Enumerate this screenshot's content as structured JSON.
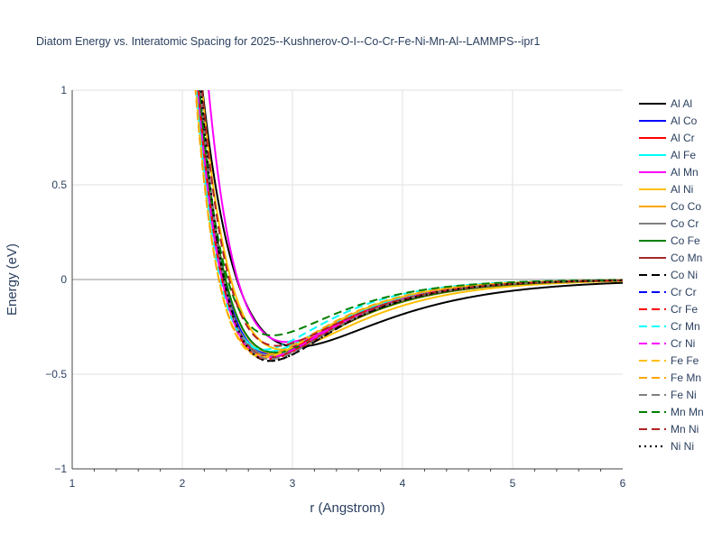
{
  "chart_data": {
    "type": "line",
    "title": "Diatom Energy vs. Interatomic Spacing for 2025--Kushnerov-O-I--Co-Cr-Fe-Ni-Mn-Al--LAMMPS--ipr1",
    "xlabel": "r (Angstrom)",
    "ylabel": "Energy (eV)",
    "xlim": [
      1,
      6
    ],
    "ylim": [
      -1,
      1
    ],
    "x_ticks": [
      "1",
      "2",
      "3",
      "4",
      "5",
      "6"
    ],
    "y_ticks": [
      "1",
      "0.5",
      "0",
      "−0.5",
      "−1"
    ],
    "grid": true,
    "legend_position": "right",
    "series": [
      {
        "name": "Al Al",
        "color": "#000000",
        "dash": "solid",
        "width": 2,
        "r0": 3.05,
        "d": 0.355,
        "a": 1.25
      },
      {
        "name": "Al Co",
        "color": "#0000ff",
        "dash": "solid",
        "width": 2,
        "r0": 2.8,
        "d": 0.39,
        "a": 1.65
      },
      {
        "name": "Al Cr",
        "color": "#ff0000",
        "dash": "solid",
        "width": 2,
        "r0": 2.78,
        "d": 0.4,
        "a": 1.65
      },
      {
        "name": "Al Fe",
        "color": "#00ffff",
        "dash": "solid",
        "width": 2,
        "r0": 2.78,
        "d": 0.38,
        "a": 1.65
      },
      {
        "name": "Al Mn",
        "color": "#ff00ff",
        "dash": "solid",
        "width": 2,
        "r0": 2.95,
        "d": 0.33,
        "a": 1.55
      },
      {
        "name": "Al Ni",
        "color": "#ffbf00",
        "dash": "solid",
        "width": 2,
        "r0": 2.92,
        "d": 0.37,
        "a": 1.45
      },
      {
        "name": "Co Co",
        "color": "#ffa500",
        "dash": "solid",
        "width": 2,
        "r0": 2.84,
        "d": 0.39,
        "a": 1.55
      },
      {
        "name": "Co Cr",
        "color": "#808080",
        "dash": "solid",
        "width": 2,
        "r0": 2.8,
        "d": 0.4,
        "a": 1.6
      },
      {
        "name": "Co Fe",
        "color": "#008000",
        "dash": "solid",
        "width": 2,
        "r0": 2.84,
        "d": 0.385,
        "a": 1.55
      },
      {
        "name": "Co Mn",
        "color": "#a52a2a",
        "dash": "solid",
        "width": 2,
        "r0": 2.8,
        "d": 0.41,
        "a": 1.6
      },
      {
        "name": "Co Ni",
        "color": "#000000",
        "dash": "dash",
        "width": 2,
        "r0": 2.8,
        "d": 0.43,
        "a": 1.65
      },
      {
        "name": "Cr Cr",
        "color": "#0000ff",
        "dash": "dash",
        "width": 2,
        "r0": 2.78,
        "d": 0.42,
        "a": 1.65
      },
      {
        "name": "Cr Fe",
        "color": "#ff0000",
        "dash": "dash",
        "width": 2,
        "r0": 2.78,
        "d": 0.42,
        "a": 1.65
      },
      {
        "name": "Cr Mn",
        "color": "#00ffff",
        "dash": "dash",
        "width": 2,
        "r0": 2.74,
        "d": 0.37,
        "a": 1.75
      },
      {
        "name": "Cr Ni",
        "color": "#ff00ff",
        "dash": "dash",
        "width": 2,
        "r0": 2.78,
        "d": 0.41,
        "a": 1.65
      },
      {
        "name": "Fe Fe",
        "color": "#ffbf00",
        "dash": "dash",
        "width": 2,
        "r0": 2.74,
        "d": 0.41,
        "a": 1.7
      },
      {
        "name": "Fe Mn",
        "color": "#ffa500",
        "dash": "dash",
        "width": 2,
        "r0": 2.74,
        "d": 0.4,
        "a": 1.7
      },
      {
        "name": "Fe Ni",
        "color": "#808080",
        "dash": "dash",
        "width": 2,
        "r0": 2.8,
        "d": 0.42,
        "a": 1.65
      },
      {
        "name": "Mn Mn",
        "color": "#008000",
        "dash": "dash",
        "width": 2,
        "r0": 2.82,
        "d": 0.295,
        "a": 1.7
      },
      {
        "name": "Mn Ni",
        "color": "#b22222",
        "dash": "dash",
        "width": 2,
        "r0": 2.86,
        "d": 0.35,
        "a": 1.6
      },
      {
        "name": "Ni Ni",
        "color": "#000000",
        "dash": "dot",
        "width": 2.2,
        "r0": 2.8,
        "d": 0.43,
        "a": 1.65
      }
    ]
  }
}
